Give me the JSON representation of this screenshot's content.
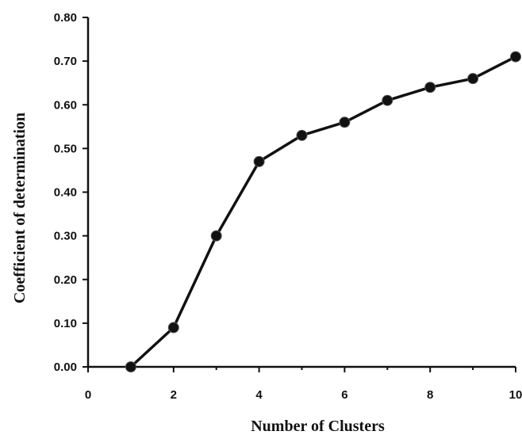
{
  "chart_data": {
    "type": "line",
    "xlabel": "Number of Clusters",
    "ylabel": "Coefficient of determination",
    "xlim": [
      0,
      10
    ],
    "ylim": [
      0,
      0.8
    ],
    "x_ticks": [
      0,
      2,
      4,
      6,
      8,
      10
    ],
    "x_tick_labels": [
      "0",
      "2",
      "4",
      "6",
      "8",
      "10"
    ],
    "y_ticks": [
      0,
      0.1,
      0.2,
      0.3,
      0.4,
      0.5,
      0.6,
      0.7,
      0.8
    ],
    "y_tick_labels": [
      "0.00",
      "0.10",
      "0.20",
      "0.30",
      "0.40",
      "0.50",
      "0.60",
      "0.70",
      "0.80"
    ],
    "grid": false,
    "legend": "none",
    "series": [
      {
        "x": [
          1,
          2,
          3,
          4,
          5,
          6,
          7,
          8,
          9,
          10
        ],
        "values": [
          0.0,
          0.09,
          0.3,
          0.47,
          0.53,
          0.56,
          0.61,
          0.64,
          0.66,
          0.71
        ]
      }
    ]
  }
}
